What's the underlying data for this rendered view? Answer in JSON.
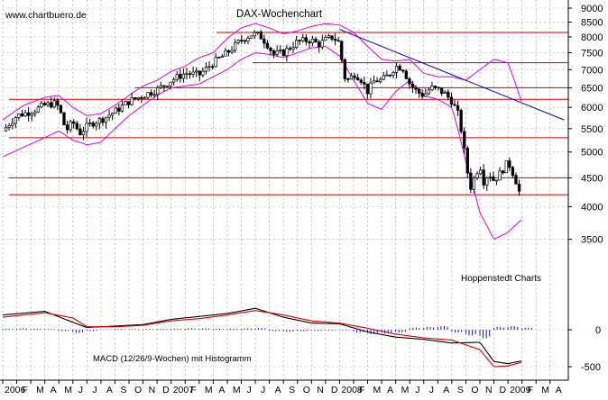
{
  "watermark": "www.chartbuero.de",
  "title": "DAX-Wochenchart",
  "source_label": "Hoppenstedt Charts",
  "macd_label": "MACD (12/26/9-Wochen) mit Histogramm",
  "colors": {
    "background": "#ffffff",
    "grid": "#b0b0b0",
    "candle": "#000000",
    "bollinger": "#e000e0",
    "support_resistance": "#d00000",
    "trendline": "#0000c0",
    "macd_line": "#000000",
    "signal_line": "#d00000",
    "histogram": "#1010c0"
  },
  "chart_data": [
    {
      "type": "candlestick",
      "title": "DAX-Wochenchart",
      "y_scale": "log",
      "ylim": [
        3200,
        9000
      ],
      "yticks": [
        3500,
        4000,
        4500,
        5000,
        5500,
        6000,
        6500,
        7000,
        7500,
        8000,
        8500,
        9000
      ],
      "x_range_months": [
        0,
        40.3
      ],
      "x_ticks": [
        {
          "m": 0,
          "label": "2006"
        },
        {
          "m": 1,
          "label": "F"
        },
        {
          "m": 2,
          "label": "M"
        },
        {
          "m": 3,
          "label": "A"
        },
        {
          "m": 4,
          "label": "M"
        },
        {
          "m": 5,
          "label": "J"
        },
        {
          "m": 6,
          "label": "J"
        },
        {
          "m": 7,
          "label": "A"
        },
        {
          "m": 8,
          "label": "S"
        },
        {
          "m": 9,
          "label": "O"
        },
        {
          "m": 10,
          "label": "N"
        },
        {
          "m": 11,
          "label": "D"
        },
        {
          "m": 12,
          "label": "2007"
        },
        {
          "m": 13,
          "label": "F"
        },
        {
          "m": 14,
          "label": "M"
        },
        {
          "m": 15,
          "label": "A"
        },
        {
          "m": 16,
          "label": "M"
        },
        {
          "m": 17,
          "label": "J"
        },
        {
          "m": 18,
          "label": "J"
        },
        {
          "m": 19,
          "label": "A"
        },
        {
          "m": 20,
          "label": "S"
        },
        {
          "m": 21,
          "label": "O"
        },
        {
          "m": 22,
          "label": "N"
        },
        {
          "m": 23,
          "label": "D"
        },
        {
          "m": 24,
          "label": "2008"
        },
        {
          "m": 25,
          "label": "F"
        },
        {
          "m": 26,
          "label": "M"
        },
        {
          "m": 27,
          "label": "A"
        },
        {
          "m": 28,
          "label": "M"
        },
        {
          "m": 29,
          "label": "J"
        },
        {
          "m": 30,
          "label": "J"
        },
        {
          "m": 31,
          "label": "A"
        },
        {
          "m": 32,
          "label": "S"
        },
        {
          "m": 33,
          "label": "O"
        },
        {
          "m": 34,
          "label": "N"
        },
        {
          "m": 35,
          "label": "D"
        },
        {
          "m": 36,
          "label": "2009"
        },
        {
          "m": 37,
          "label": "F"
        },
        {
          "m": 38,
          "label": "M"
        },
        {
          "m": 39,
          "label": "A"
        }
      ],
      "close_path": [
        [
          0,
          5450
        ],
        [
          1.0,
          5800
        ],
        [
          2.0,
          5900
        ],
        [
          3.0,
          6050
        ],
        [
          3.7,
          6100
        ],
        [
          4.0,
          6000
        ],
        [
          4.5,
          5450
        ],
        [
          5.0,
          5650
        ],
        [
          5.5,
          5400
        ],
        [
          6.0,
          5550
        ],
        [
          6.5,
          5650
        ],
        [
          7.0,
          5700
        ],
        [
          8.0,
          5900
        ],
        [
          9.0,
          6150
        ],
        [
          10.0,
          6300
        ],
        [
          11.0,
          6450
        ],
        [
          12.0,
          6700
        ],
        [
          13.0,
          6900
        ],
        [
          14.0,
          6850
        ],
        [
          15.0,
          7200
        ],
        [
          16.0,
          7500
        ],
        [
          17.0,
          7900
        ],
        [
          17.8,
          8100
        ],
        [
          18.3,
          8050
        ],
        [
          18.8,
          7800
        ],
        [
          19.3,
          7450
        ],
        [
          20.0,
          7500
        ],
        [
          21.0,
          7850
        ],
        [
          22.0,
          7900
        ],
        [
          22.5,
          7750
        ],
        [
          23.0,
          7900
        ],
        [
          23.5,
          8000
        ],
        [
          24.0,
          7800
        ],
        [
          24.3,
          6800
        ],
        [
          24.7,
          6700
        ],
        [
          25.0,
          6900
        ],
        [
          25.5,
          6750
        ],
        [
          26.0,
          6400
        ],
        [
          26.5,
          6700
        ],
        [
          27.0,
          6700
        ],
        [
          27.5,
          6850
        ],
        [
          28.0,
          7100
        ],
        [
          28.5,
          7050
        ],
        [
          29.0,
          6600
        ],
        [
          29.5,
          6400
        ],
        [
          30.0,
          6300
        ],
        [
          30.5,
          6500
        ],
        [
          31.0,
          6450
        ],
        [
          31.5,
          6350
        ],
        [
          32.0,
          6150
        ],
        [
          32.5,
          5800
        ],
        [
          32.8,
          5200
        ],
        [
          33.0,
          4800
        ],
        [
          33.3,
          4300
        ],
        [
          33.6,
          4500
        ],
        [
          34.0,
          4750
        ],
        [
          34.3,
          4400
        ],
        [
          34.6,
          4600
        ],
        [
          35.0,
          4450
        ],
        [
          35.5,
          4600
        ],
        [
          36.0,
          4800
        ],
        [
          36.5,
          4500
        ],
        [
          36.8,
          4250
        ],
        [
          37.0,
          4300
        ]
      ],
      "horizontal_levels": [
        8150,
        7200,
        6500,
        6200,
        5300,
        4500,
        4200
      ],
      "trendline": [
        [
          24.0,
          8250
        ],
        [
          40.0,
          5700
        ]
      ],
      "bollinger_upper": [
        [
          0,
          5700
        ],
        [
          1.5,
          6050
        ],
        [
          3.0,
          6250
        ],
        [
          4.0,
          6300
        ],
        [
          5.0,
          6000
        ],
        [
          6.0,
          5800
        ],
        [
          7.0,
          5850
        ],
        [
          8.0,
          6050
        ],
        [
          9.0,
          6300
        ],
        [
          10.0,
          6550
        ],
        [
          11.0,
          6700
        ],
        [
          12.0,
          6950
        ],
        [
          13.0,
          7100
        ],
        [
          14.0,
          7350
        ],
        [
          15.0,
          7500
        ],
        [
          16.0,
          7950
        ],
        [
          17.0,
          8300
        ],
        [
          18.0,
          8450
        ],
        [
          19.0,
          8300
        ],
        [
          20.0,
          8100
        ],
        [
          21.0,
          8200
        ],
        [
          22.0,
          8350
        ],
        [
          23.0,
          8450
        ],
        [
          24.0,
          8400
        ],
        [
          25.0,
          8150
        ],
        [
          26.0,
          7700
        ],
        [
          27.0,
          7300
        ],
        [
          28.0,
          7250
        ],
        [
          29.0,
          7300
        ],
        [
          30.0,
          6900
        ],
        [
          31.0,
          6800
        ],
        [
          32.0,
          6800
        ],
        [
          33.0,
          6700
        ],
        [
          34.0,
          7000
        ],
        [
          35.0,
          7300
        ],
        [
          36.0,
          7200
        ],
        [
          37.0,
          6100
        ]
      ],
      "bollinger_lower": [
        [
          0,
          4900
        ],
        [
          1.5,
          5100
        ],
        [
          3.0,
          5300
        ],
        [
          4.0,
          5450
        ],
        [
          5.0,
          5250
        ],
        [
          6.0,
          5150
        ],
        [
          7.0,
          5200
        ],
        [
          8.0,
          5500
        ],
        [
          9.0,
          5800
        ],
        [
          10.0,
          6050
        ],
        [
          11.0,
          6300
        ],
        [
          12.0,
          6500
        ],
        [
          13.0,
          6550
        ],
        [
          14.0,
          6600
        ],
        [
          15.0,
          6800
        ],
        [
          16.0,
          7000
        ],
        [
          17.0,
          7300
        ],
        [
          18.0,
          7500
        ],
        [
          19.0,
          7450
        ],
        [
          20.0,
          7350
        ],
        [
          21.0,
          7500
        ],
        [
          22.0,
          7650
        ],
        [
          23.0,
          7700
        ],
        [
          24.0,
          7400
        ],
        [
          25.0,
          6700
        ],
        [
          26.0,
          6100
        ],
        [
          27.0,
          5950
        ],
        [
          28.0,
          6400
        ],
        [
          29.0,
          6700
        ],
        [
          30.0,
          6300
        ],
        [
          31.0,
          6200
        ],
        [
          32.0,
          6000
        ],
        [
          33.0,
          4800
        ],
        [
          34.0,
          3900
        ],
        [
          35.0,
          3500
        ],
        [
          36.0,
          3600
        ],
        [
          37.0,
          3800
        ]
      ]
    },
    {
      "type": "line",
      "title": "MACD (12/26/9-Wochen) mit Histogramm",
      "ylim": [
        -600,
        350
      ],
      "yticks": [
        0,
        -500
      ],
      "series": [
        {
          "values": [
            [
              0,
              200
            ],
            [
              3,
              250
            ],
            [
              5,
              100
            ],
            [
              6,
              30
            ],
            [
              8,
              50
            ],
            [
              10,
              70
            ],
            [
              12,
              140
            ],
            [
              14,
              180
            ],
            [
              16,
              220
            ],
            [
              18,
              290
            ],
            [
              20,
              170
            ],
            [
              22,
              90
            ],
            [
              24,
              80
            ],
            [
              26,
              -30
            ],
            [
              28,
              -100
            ],
            [
              30,
              -130
            ],
            [
              32,
              -180
            ],
            [
              34,
              -170
            ],
            [
              35,
              -430
            ],
            [
              36,
              -460
            ],
            [
              37,
              -420
            ]
          ]
        },
        {
          "values": [
            [
              0,
              170
            ],
            [
              3,
              230
            ],
            [
              5,
              160
            ],
            [
              6,
              40
            ],
            [
              8,
              40
            ],
            [
              10,
              60
            ],
            [
              12,
              120
            ],
            [
              14,
              150
            ],
            [
              16,
              200
            ],
            [
              18,
              260
            ],
            [
              20,
              200
            ],
            [
              22,
              120
            ],
            [
              24,
              90
            ],
            [
              26,
              20
            ],
            [
              28,
              -60
            ],
            [
              30,
              -110
            ],
            [
              32,
              -140
            ],
            [
              34,
              -270
            ],
            [
              35,
              -500
            ],
            [
              36,
              -490
            ],
            [
              37,
              -440
            ]
          ]
        }
      ],
      "histogram": [
        [
          0,
          15
        ],
        [
          1,
          20
        ],
        [
          2,
          15
        ],
        [
          3,
          10
        ],
        [
          4,
          -20
        ],
        [
          5,
          -45
        ],
        [
          6,
          -20
        ],
        [
          7,
          5
        ],
        [
          8,
          10
        ],
        [
          9,
          10
        ],
        [
          10,
          10
        ],
        [
          11,
          12
        ],
        [
          12,
          15
        ],
        [
          13,
          20
        ],
        [
          14,
          20
        ],
        [
          15,
          15
        ],
        [
          16,
          15
        ],
        [
          17,
          20
        ],
        [
          18,
          25
        ],
        [
          19,
          -20
        ],
        [
          20,
          -30
        ],
        [
          21,
          -20
        ],
        [
          22,
          -15
        ],
        [
          23,
          -10
        ],
        [
          24,
          -10
        ],
        [
          25,
          -40
        ],
        [
          26,
          -60
        ],
        [
          27,
          -50
        ],
        [
          28,
          -40
        ],
        [
          29,
          30
        ],
        [
          30,
          40
        ],
        [
          31,
          50
        ],
        [
          32,
          -40
        ],
        [
          33,
          -80
        ],
        [
          34,
          -120
        ],
        [
          35,
          40
        ],
        [
          36,
          50
        ],
        [
          37,
          30
        ]
      ]
    }
  ]
}
